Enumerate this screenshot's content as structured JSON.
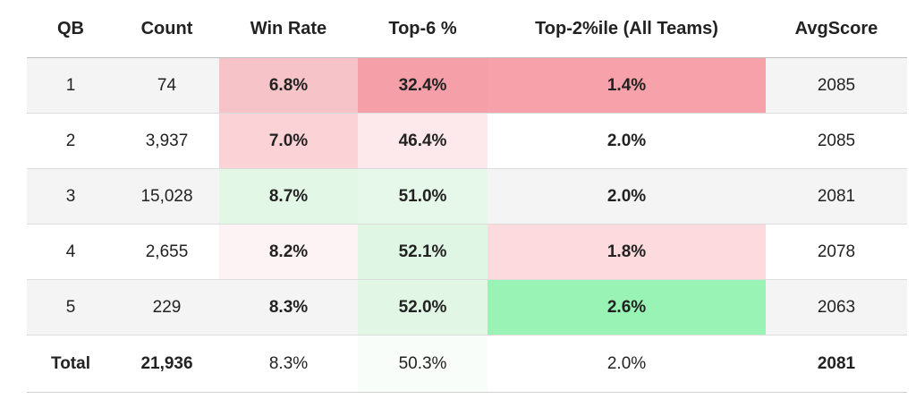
{
  "table": {
    "headers": [
      "QB",
      "Count",
      "Win Rate",
      "Top-6 %",
      "Top-2%ile (All Teams)",
      "AvgScore"
    ],
    "rows": [
      {
        "qb": "1",
        "count": "74",
        "win_rate": "6.8%",
        "top6": "32.4%",
        "top2": "1.4%",
        "avg": "2085",
        "colors": {
          "win_rate": "#f6c4c8",
          "top6": "#f5a0a8",
          "top2": "#f7a2aa"
        }
      },
      {
        "qb": "2",
        "count": "3,937",
        "win_rate": "7.0%",
        "top6": "46.4%",
        "top2": "2.0%",
        "avg": "2085",
        "colors": {
          "win_rate": "#fbd2d6",
          "top6": "#fde9eb",
          "top2": ""
        }
      },
      {
        "qb": "3",
        "count": "15,028",
        "win_rate": "8.7%",
        "top6": "51.0%",
        "top2": "2.0%",
        "avg": "2081",
        "colors": {
          "win_rate": "#e3f7e7",
          "top6": "#e6f8ea",
          "top2": ""
        }
      },
      {
        "qb": "4",
        "count": "2,655",
        "win_rate": "8.2%",
        "top6": "52.1%",
        "top2": "1.8%",
        "avg": "2078",
        "colors": {
          "win_rate": "#fdf3f4",
          "top6": "#e0f6e5",
          "top2": "#fcdadd"
        }
      },
      {
        "qb": "5",
        "count": "229",
        "win_rate": "8.3%",
        "top6": "52.0%",
        "top2": "2.6%",
        "avg": "2063",
        "colors": {
          "win_rate": "#f4f4f4",
          "top6": "#e2f6e6",
          "top2": "#98f3b4"
        }
      }
    ],
    "total": {
      "qb": "Total",
      "count": "21,936",
      "win_rate": "8.3%",
      "top6": "50.3%",
      "top2": "2.0%",
      "avg": "2081",
      "colors": {
        "top6": "#f8fdf9"
      }
    }
  }
}
